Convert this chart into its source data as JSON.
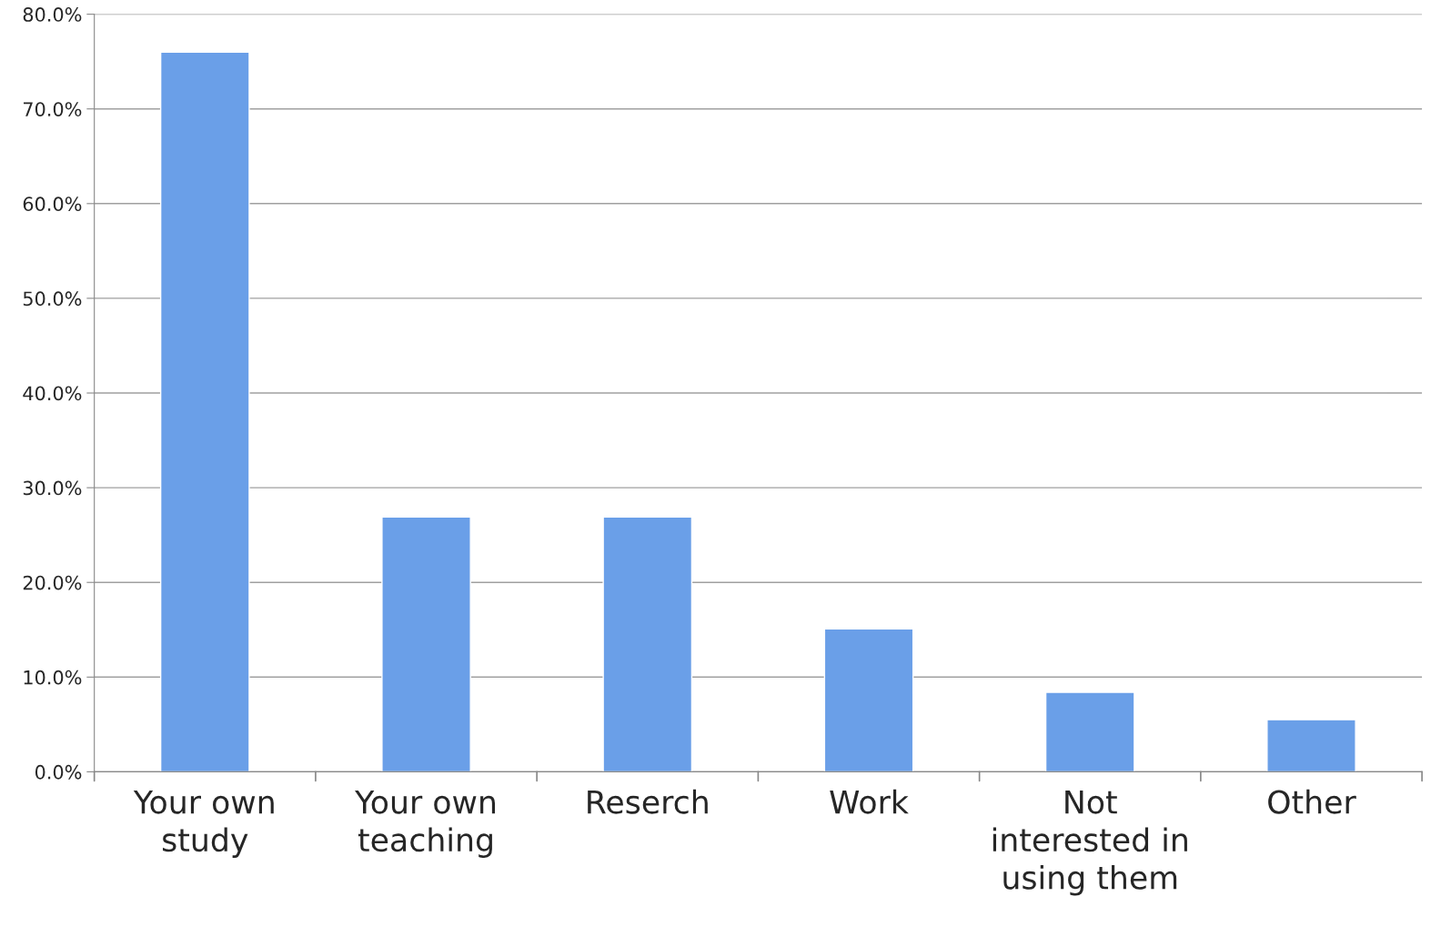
{
  "chart_data": {
    "type": "bar",
    "categories": [
      "Your own\nstudy",
      "Your own\nteaching",
      "Reserch",
      "Work",
      "Not\ninterested in\nusing them",
      "Other"
    ],
    "values": [
      76.0,
      26.9,
      26.9,
      15.1,
      8.4,
      5.5
    ],
    "color": "#6a9fe8",
    "ylim": [
      0,
      80
    ],
    "yticks": [
      {
        "value": 0,
        "label": "0.0%"
      },
      {
        "value": 10,
        "label": "10.0%"
      },
      {
        "value": 20,
        "label": "20.0%"
      },
      {
        "value": 30,
        "label": "30.0%"
      },
      {
        "value": 40,
        "label": "40.0%"
      },
      {
        "value": 50,
        "label": "50.0%"
      },
      {
        "value": 60,
        "label": "60.0%"
      },
      {
        "value": 70,
        "label": "70.0%"
      },
      {
        "value": 80,
        "label": "80.0%"
      }
    ],
    "grid": "y"
  }
}
